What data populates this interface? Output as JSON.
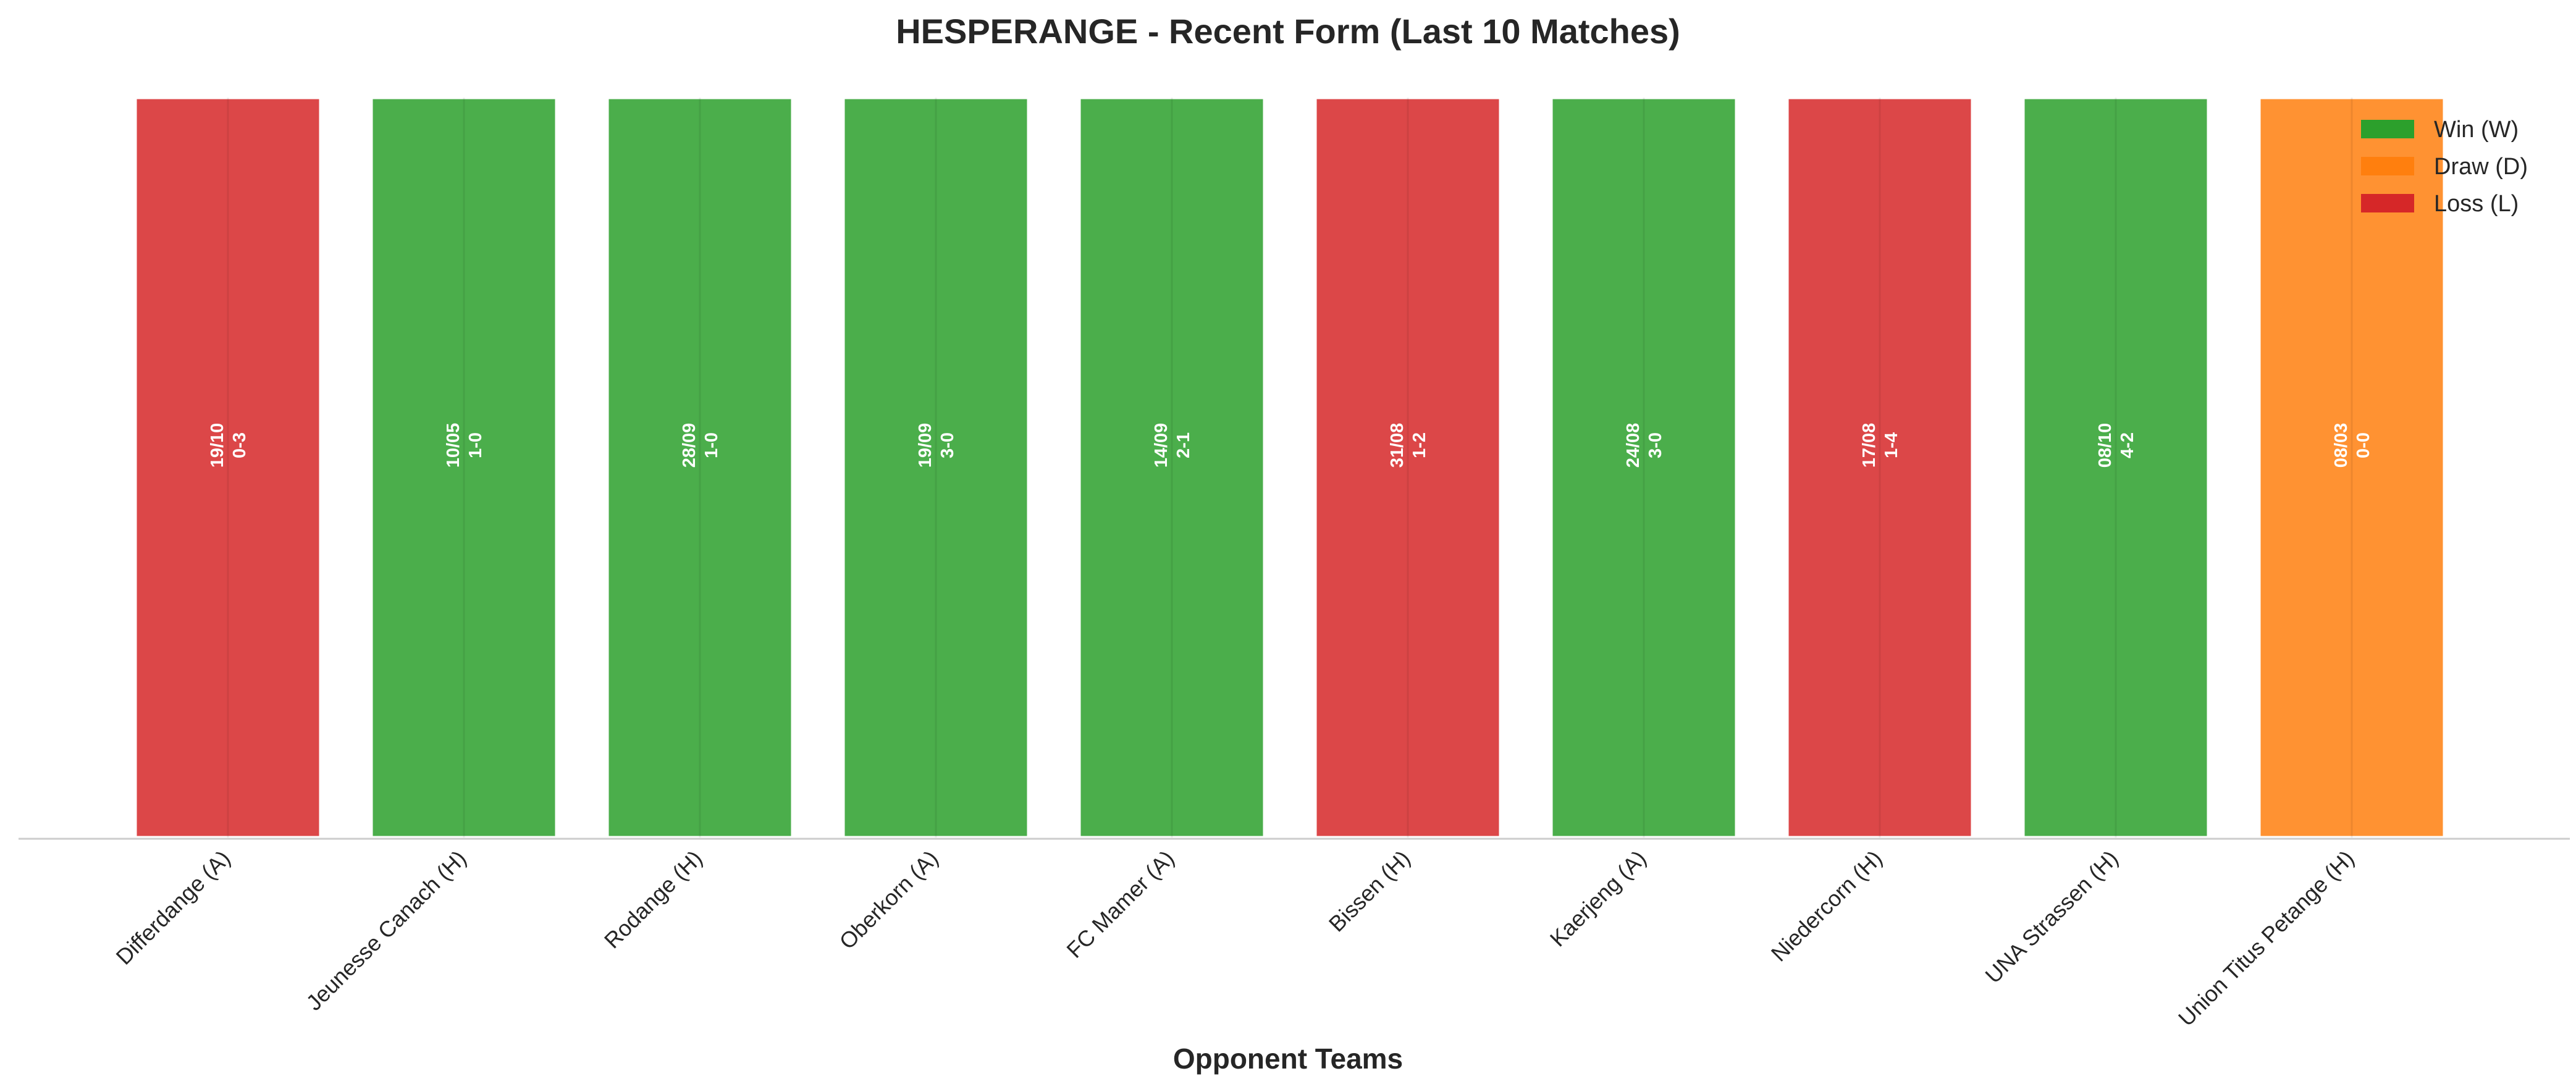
{
  "chart_data": {
    "type": "bar",
    "title": "HESPERANGE - Recent Form (Last 10 Matches)",
    "xlabel": "Opponent Teams",
    "ylabel": "",
    "grid": false,
    "legend_position": "top-right",
    "categories": [
      "Differdange (A)",
      "Jeunesse Canach (H)",
      "Rodange (H)",
      "Oberkorn (A)",
      "FC Mamer (A)",
      "Bissen (H)",
      "Kaerjeng (A)",
      "Niedercorn (H)",
      "UNA Strassen (H)",
      "Union Titus Petange (H)"
    ],
    "values": [
      1,
      1,
      1,
      1,
      1,
      1,
      1,
      1,
      1,
      1
    ],
    "ylim": [
      0,
      1
    ],
    "results": [
      "L",
      "W",
      "W",
      "W",
      "W",
      "L",
      "W",
      "L",
      "W",
      "D"
    ],
    "dates": [
      "19/10",
      "10/05",
      "28/09",
      "19/09",
      "14/09",
      "31/08",
      "24/08",
      "17/08",
      "08/10",
      "08/03"
    ],
    "scores": [
      "0-3",
      "1-0",
      "1-0",
      "3-0",
      "2-1",
      "1-2",
      "3-0",
      "1-4",
      "4-2",
      "0-0"
    ],
    "legend": [
      {
        "key": "W",
        "label": "Win (W)",
        "color": "#2ca02c"
      },
      {
        "key": "D",
        "label": "Draw (D)",
        "color": "#ff7f0e"
      },
      {
        "key": "L",
        "label": "Loss (L)",
        "color": "#d62728"
      }
    ]
  }
}
